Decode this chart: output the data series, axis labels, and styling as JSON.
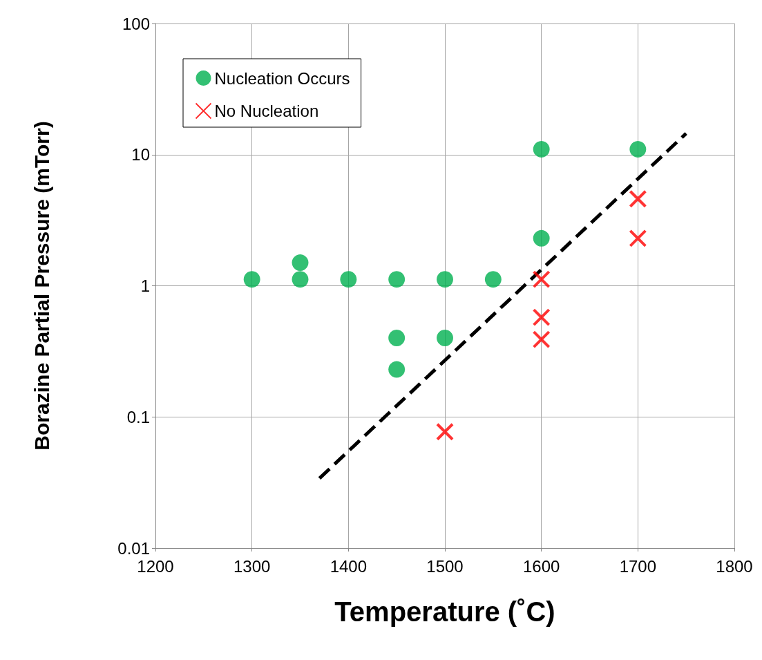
{
  "chart_data": {
    "type": "scatter",
    "xlabel": "Temperature (˚C)",
    "ylabel": "Borazine Partial Pressure (mTorr)",
    "xlim": [
      1200,
      1800
    ],
    "xticks": [
      1200,
      1300,
      1400,
      1500,
      1600,
      1700,
      1800
    ],
    "ylim": [
      0.01,
      100
    ],
    "yticks": [
      0.01,
      0.1,
      1,
      10,
      100
    ],
    "log": "y",
    "grid": true,
    "legend": "top left",
    "series": [
      {
        "name": "Nucleation Occurs",
        "color": "#00b050",
        "marker": "circle",
        "x": [
          1300,
          1350,
          1350,
          1400,
          1450,
          1450,
          1450,
          1500,
          1500,
          1550,
          1600,
          1600,
          1700
        ],
        "values": [
          1.12,
          1.5,
          1.12,
          1.12,
          1.12,
          0.4,
          0.23,
          1.12,
          0.4,
          1.12,
          11,
          2.3,
          11
        ]
      },
      {
        "name": "No Nucleation",
        "color": "#ff0000",
        "marker": "cross",
        "x": [
          1500,
          1600,
          1600,
          1600,
          1700,
          1700
        ],
        "values": [
          0.077,
          1.12,
          0.575,
          0.39,
          4.6,
          2.3
        ]
      },
      {
        "type": "line",
        "color": "#000000",
        "marker": "none",
        "line_style": "dashed",
        "x": [
          1370,
          1750
        ],
        "values": [
          0.034,
          14.5
        ]
      }
    ]
  }
}
